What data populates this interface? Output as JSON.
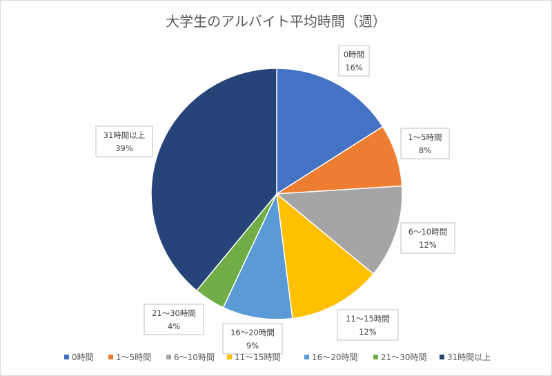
{
  "chart_data": {
    "type": "pie",
    "title": "大学生のアルバイト平均時間（週）",
    "categories": [
      "0時間",
      "1～5時間",
      "6～10時間",
      "11～15時間",
      "16～20時間",
      "21～30時間",
      "31時間以上"
    ],
    "values": [
      16,
      8,
      12,
      12,
      9,
      4,
      39
    ],
    "unit": "%",
    "colors": [
      "#4472C4",
      "#ED7D31",
      "#A5A5A5",
      "#FFC000",
      "#5B9BD5",
      "#70AD47",
      "#264478"
    ],
    "legend_position": "bottom",
    "data_labels": [
      {
        "name": "0時間",
        "percent": "16%"
      },
      {
        "name": "1～5時間",
        "percent": "8%"
      },
      {
        "name": "6～10時間",
        "percent": "12%"
      },
      {
        "name": "11～15時間",
        "percent": "12%"
      },
      {
        "name": "16～20時間",
        "percent": "9%"
      },
      {
        "name": "21～30時間",
        "percent": "4%"
      },
      {
        "name": "31時間以上",
        "percent": "39%"
      }
    ]
  }
}
